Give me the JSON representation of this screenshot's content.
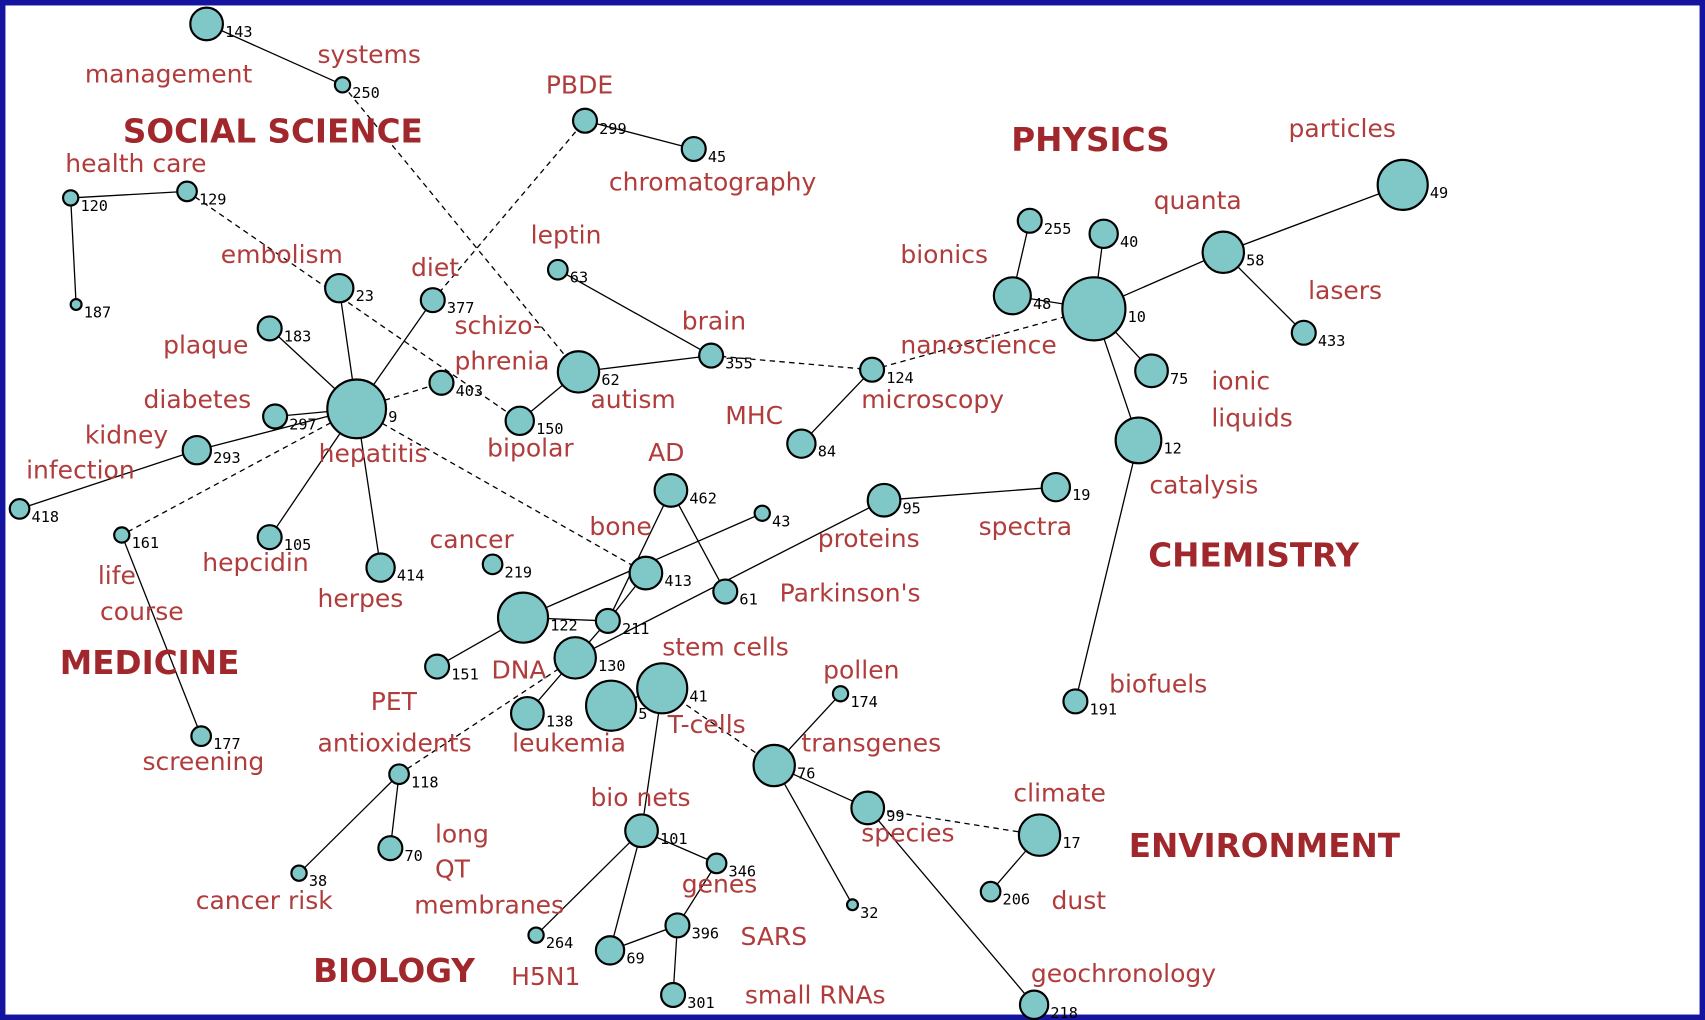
{
  "fields": [
    "SOCIAL SCIENCE",
    "PHYSICS",
    "CHEMISTRY",
    "MEDICINE",
    "ENVIRONMENT",
    "BIOLOGY"
  ],
  "labels": [
    "systems",
    "management",
    "PBDE",
    "chromatography",
    "health care",
    "leptin",
    "embolism",
    "diet",
    "schizo-",
    "phrenia",
    "plaque",
    "brain",
    "diabetes",
    "autism",
    "kidney",
    "hepatitis",
    "bipolar",
    "infection",
    "MHC",
    "nanoscience",
    "microscopy",
    "AD",
    "bone",
    "proteins",
    "spectra",
    "cancer",
    "life",
    "course",
    "hepcidin",
    "herpes",
    "Parkinson's",
    "stem cells",
    "DNA",
    "PET",
    "T-cells",
    "leukemia",
    "antioxidents",
    "screening",
    "pollen",
    "transgenes",
    "bio nets",
    "long",
    "QT",
    "species",
    "cancer risk",
    "membranes",
    "genes",
    "SARS",
    "H5N1",
    "small RNAs",
    "geochronology",
    "dust",
    "climate",
    "biofuels",
    "catalysis",
    "ionic",
    "liquids",
    "particles",
    "quanta",
    "lasers",
    "bionics"
  ],
  "nodes": [
    143,
    250,
    120,
    129,
    187,
    23,
    377,
    183,
    403,
    9,
    297,
    293,
    418,
    161,
    105,
    414,
    177,
    299,
    45,
    63,
    62,
    150,
    355,
    124,
    84,
    462,
    43,
    413,
    61,
    219,
    122,
    211,
    151,
    130,
    41,
    5,
    138,
    95,
    19,
    118,
    70,
    38,
    101,
    346,
    264,
    396,
    69,
    301,
    174,
    76,
    99,
    32,
    17,
    206,
    218,
    191,
    255,
    40,
    48,
    10,
    58,
    49,
    433,
    75,
    12
  ]
}
